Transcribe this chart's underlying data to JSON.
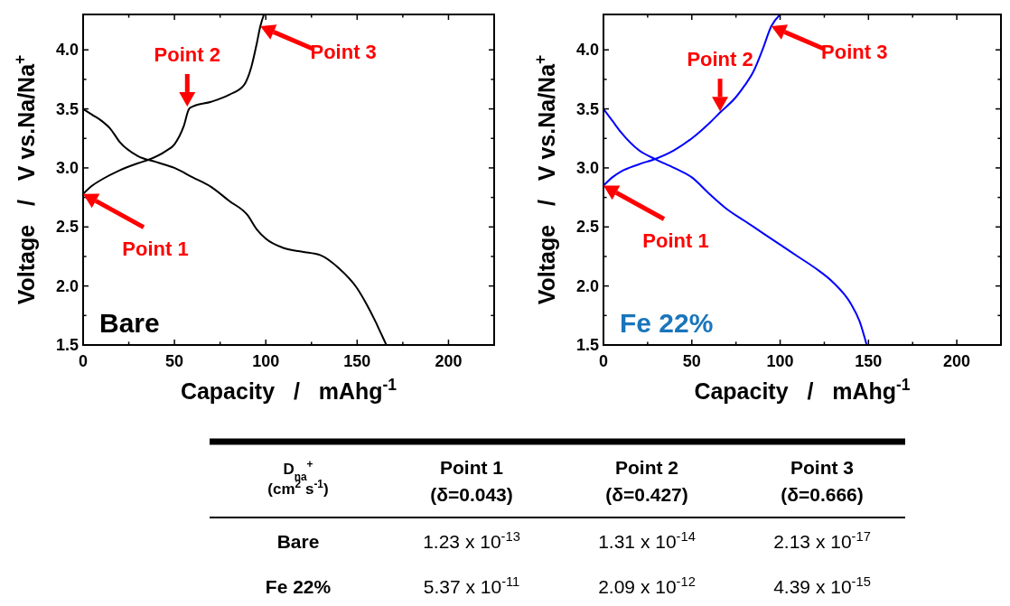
{
  "chart_data": [
    {
      "type": "line",
      "xlabel": "Capacity   /   mAhg$^{-1}$",
      "ylabel": "Voltage   /   V vs.Na/Na$^{+}$",
      "xlim": [
        0,
        225
      ],
      "ylim": [
        1.5,
        4.3
      ],
      "xticks": [
        0,
        {
          "value": 25,
          "label": null
        },
        50,
        {
          "value": 75,
          "label": null
        },
        100,
        {
          "value": 125,
          "label": null
        },
        150,
        {
          "value": 175,
          "label": null
        },
        200
      ],
      "yticks": [
        {
          "value": 1.5,
          "label": "1.5"
        },
        {
          "value": 1.75,
          "label": null
        },
        {
          "value": 2,
          "label": "2.0"
        },
        {
          "value": 2.25,
          "label": null
        },
        {
          "value": 2.5,
          "label": "2.5"
        },
        {
          "value": 2.75,
          "label": null
        },
        {
          "value": 3,
          "label": "3.0"
        },
        {
          "value": 3.25,
          "label": null
        },
        {
          "value": 3.5,
          "label": "3.5"
        },
        {
          "value": 3.75,
          "label": null
        },
        {
          "value": 4,
          "label": "4.0"
        }
      ],
      "grid": false,
      "marker": "none",
      "line_style": "solid",
      "series": [
        {
          "color": "#000000",
          "x": [
            0,
            5,
            10,
            20,
            30,
            36,
            45,
            50,
            55,
            58,
            60,
            70,
            80,
            88,
            92,
            95,
            97,
            99
          ],
          "values": [
            2.78,
            2.85,
            2.9,
            2.98,
            3.04,
            3.07,
            3.14,
            3.2,
            3.35,
            3.5,
            3.52,
            3.56,
            3.62,
            3.7,
            3.85,
            4.05,
            4.2,
            4.3
          ]
        },
        {
          "color": "#000000",
          "x": [
            0,
            5,
            10,
            15,
            20,
            30,
            40,
            50,
            60,
            70,
            80,
            90,
            95,
            100,
            110,
            120,
            130,
            140,
            150,
            155,
            160,
            163,
            166
          ],
          "values": [
            3.5,
            3.45,
            3.4,
            3.33,
            3.22,
            3.1,
            3.05,
            3.0,
            2.92,
            2.84,
            2.72,
            2.6,
            2.48,
            2.4,
            2.32,
            2.29,
            2.26,
            2.15,
            1.98,
            1.85,
            1.7,
            1.6,
            1.5
          ]
        }
      ],
      "annotations": [
        "Bare",
        {
          "text": "Point 1",
          "x": 0,
          "y": 2.78
        },
        {
          "text": "Point 2",
          "x": 57,
          "y": 3.52
        },
        {
          "text": "Point 3",
          "x": 97,
          "y": 4.2
        }
      ]
    },
    {
      "type": "line",
      "xlabel": "Capacity   /   mAhg$^{-1}$",
      "ylabel": "Voltage   /   V vs.Na/Na$^{+}$",
      "xlim": [
        0,
        225
      ],
      "ylim": [
        1.5,
        4.3
      ],
      "xticks": [
        0,
        {
          "value": 25,
          "label": null
        },
        50,
        {
          "value": 75,
          "label": null
        },
        100,
        {
          "value": 125,
          "label": null
        },
        150,
        {
          "value": 175,
          "label": null
        },
        200
      ],
      "yticks": [
        {
          "value": 1.5,
          "label": "1.5"
        },
        {
          "value": 1.75,
          "label": null
        },
        {
          "value": 2,
          "label": "2.0"
        },
        {
          "value": 2.25,
          "label": null
        },
        {
          "value": 2.5,
          "label": "2.5"
        },
        {
          "value": 2.75,
          "label": null
        },
        {
          "value": 3,
          "label": "3.0"
        },
        {
          "value": 3.25,
          "label": null
        },
        {
          "value": 3.5,
          "label": "3.5"
        },
        {
          "value": 3.75,
          "label": null
        },
        {
          "value": 4,
          "label": "4.0"
        }
      ],
      "grid": false,
      "marker": "none",
      "line_style": "solid",
      "series": [
        {
          "color": "#0000ff",
          "x": [
            0,
            5,
            10,
            20,
            30,
            40,
            50,
            60,
            66,
            75,
            80,
            85,
            90,
            95,
            100
          ],
          "values": [
            2.85,
            2.92,
            2.97,
            3.03,
            3.08,
            3.15,
            3.25,
            3.38,
            3.47,
            3.6,
            3.7,
            3.82,
            4.0,
            4.2,
            4.3
          ]
        },
        {
          "color": "#0000ff",
          "x": [
            0,
            5,
            10,
            20,
            30,
            40,
            50,
            60,
            70,
            80,
            90,
            100,
            110,
            120,
            130,
            140,
            145,
            149
          ],
          "values": [
            3.5,
            3.4,
            3.3,
            3.15,
            3.07,
            3.0,
            2.92,
            2.78,
            2.65,
            2.55,
            2.45,
            2.35,
            2.25,
            2.15,
            2.03,
            1.85,
            1.7,
            1.5
          ]
        }
      ],
      "annotations": [
        "Fe 22%",
        {
          "text": "Point 1",
          "x": 0,
          "y": 2.85
        },
        {
          "text": "Point 2",
          "x": 66,
          "y": 3.48
        },
        {
          "text": "Point 3",
          "x": 95,
          "y": 4.2
        }
      ]
    },
    {
      "type": "other",
      "annotations": [
        "D$_{na}$$^{+}$\n(cm$^{2}$ s$^{-1}$)",
        "Point 1\n(δ=0.043)",
        "Point 2\n(δ=0.427)",
        "Point 3\n(δ=0.666)",
        "Bare",
        "1.23 x 10$^{-13}$",
        "1.31 x 10$^{-14}$",
        "2.13 x 10$^{-17}$",
        "Fe 22%",
        "5.37 x 10$^{-11}$",
        "2.09 x 10$^{-12}$",
        "4.39 x 10$^{-15}$"
      ]
    }
  ]
}
